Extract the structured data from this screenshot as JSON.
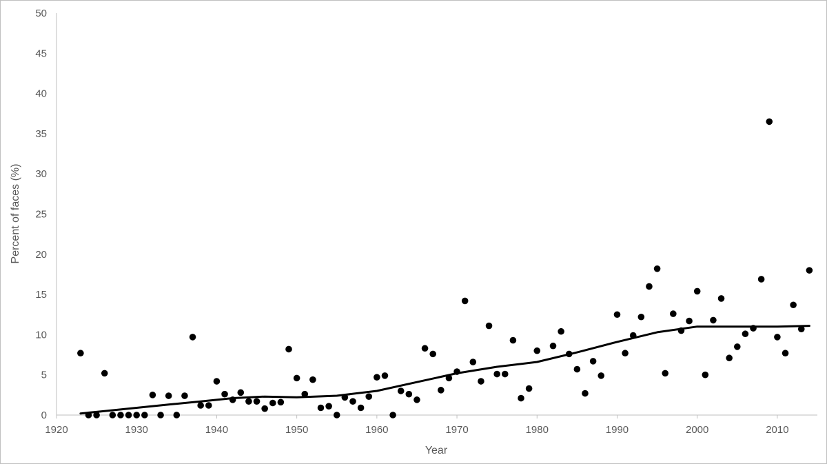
{
  "chart_data": {
    "type": "scatter",
    "title": "",
    "xlabel": "Year",
    "ylabel": "Percent of faces (%)",
    "xlim": [
      1920,
      2015
    ],
    "ylim": [
      0,
      50
    ],
    "xticks": [
      "1920",
      "1930",
      "1940",
      "1950",
      "1960",
      "1970",
      "1980",
      "1990",
      "2000",
      "2010"
    ],
    "yticks": [
      "0",
      "5",
      "10",
      "15",
      "20",
      "25",
      "30",
      "35",
      "40",
      "45",
      "50"
    ],
    "grid": false,
    "legend": "none",
    "colors": {
      "points": "#000000",
      "trend": "#000000",
      "axis": "#bfbfbf",
      "text": "#595959"
    },
    "series": [
      {
        "type": "scatter",
        "x": [
          1923,
          1924,
          1925,
          1926,
          1927,
          1928,
          1929,
          1930,
          1931,
          1932,
          1933,
          1934,
          1935,
          1936,
          1937,
          1938,
          1939,
          1940,
          1941,
          1942,
          1943,
          1944,
          1945,
          1946,
          1947,
          1948,
          1949,
          1950,
          1951,
          1952,
          1953,
          1954,
          1955,
          1956,
          1957,
          1958,
          1959,
          1960,
          1961,
          1962,
          1963,
          1964,
          1965,
          1966,
          1967,
          1968,
          1969,
          1970,
          1971,
          1972,
          1973,
          1974,
          1975,
          1976,
          1977,
          1978,
          1979,
          1980,
          1982,
          1983,
          1984,
          1985,
          1986,
          1987,
          1988,
          1990,
          1991,
          1992,
          1993,
          1994,
          1995,
          1996,
          1997,
          1998,
          1999,
          2000,
          2001,
          2002,
          2003,
          2004,
          2005,
          2006,
          2007,
          2008,
          2009,
          2010,
          2011,
          2012,
          2013,
          2014
        ],
        "y": [
          7.7,
          0,
          0,
          5.2,
          0,
          0,
          0,
          0,
          0,
          2.5,
          0,
          2.4,
          0,
          2.4,
          9.7,
          1.2,
          1.2,
          4.2,
          2.6,
          1.9,
          2.8,
          1.7,
          1.7,
          0.8,
          1.5,
          1.6,
          8.2,
          4.6,
          2.6,
          4.4,
          0.9,
          1.1,
          0,
          2.2,
          1.7,
          0.9,
          2.3,
          4.7,
          4.9,
          0,
          3.0,
          2.6,
          1.9,
          8.3,
          7.6,
          3.1,
          4.6,
          5.4,
          14.2,
          6.6,
          4.2,
          11.1,
          5.1,
          5.1,
          9.3,
          2.1,
          3.3,
          8.0,
          8.6,
          10.4,
          7.6,
          5.7,
          2.7,
          6.7,
          4.9,
          12.5,
          7.7,
          9.9,
          12.2,
          16.0,
          18.2,
          5.2,
          12.6,
          10.5,
          11.7,
          15.4,
          5.0,
          11.8,
          14.5,
          7.1,
          8.5,
          10.1,
          10.8,
          16.9,
          36.5,
          9.7,
          7.7,
          13.7,
          10.7,
          18.0
        ]
      },
      {
        "type": "line",
        "x": [
          1923,
          1926,
          1930,
          1934,
          1938,
          1942,
          1946,
          1950,
          1955,
          1960,
          1965,
          1970,
          1975,
          1980,
          1985,
          1990,
          1995,
          2000,
          2005,
          2010,
          2014
        ],
        "y": [
          0.2,
          0.5,
          0.9,
          1.3,
          1.7,
          2.1,
          2.3,
          2.2,
          2.4,
          3.0,
          4.1,
          5.2,
          6.0,
          6.6,
          7.8,
          9.1,
          10.3,
          11.0,
          11.0,
          11.0,
          11.1
        ]
      }
    ]
  }
}
